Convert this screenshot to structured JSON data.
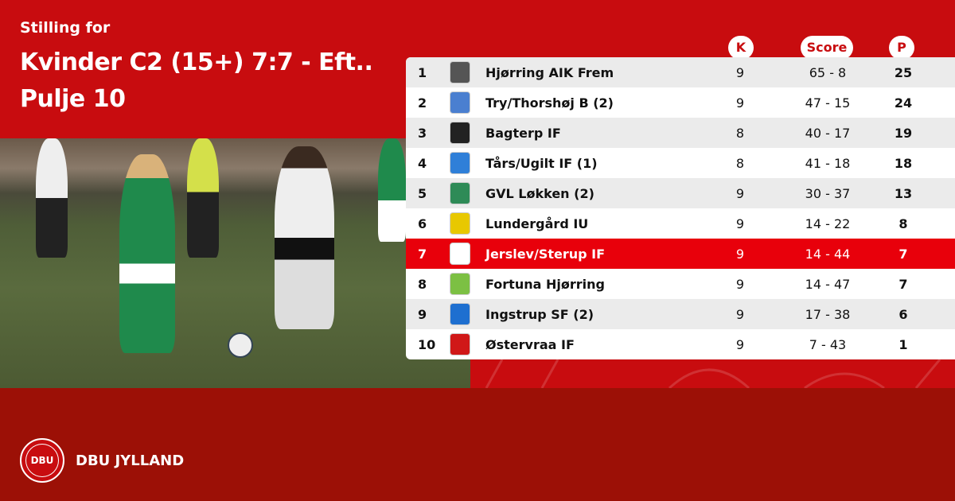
{
  "header": {
    "subtitle": "Stilling for",
    "title_line1": "Kvinder C2 (15+) 7:7 - Eft..",
    "title_line2": "Pulje 10"
  },
  "columns": {
    "k": "K",
    "score": "Score",
    "p": "P"
  },
  "colors": {
    "primary": "#c80c0f",
    "footer": "#9c1006",
    "highlight": "#e8000b"
  },
  "rows": [
    {
      "pos": "1",
      "name": "Hjørring AIK Frem",
      "k": "9",
      "score": "65 - 8",
      "p": "25",
      "logo_color": "#555555"
    },
    {
      "pos": "2",
      "name": "Try/Thorshøj B (2)",
      "k": "9",
      "score": "47 - 15",
      "p": "24",
      "logo_color": "#4a7fd0"
    },
    {
      "pos": "3",
      "name": "Bagterp IF",
      "k": "8",
      "score": "40 - 17",
      "p": "19",
      "logo_color": "#222222"
    },
    {
      "pos": "4",
      "name": "Tårs/Ugilt IF (1)",
      "k": "8",
      "score": "41 - 18",
      "p": "18",
      "logo_color": "#2f7fd8"
    },
    {
      "pos": "5",
      "name": "GVL Løkken (2)",
      "k": "9",
      "score": "30 - 37",
      "p": "13",
      "logo_color": "#2e8b57"
    },
    {
      "pos": "6",
      "name": "Lundergård IU",
      "k": "9",
      "score": "14 - 22",
      "p": "8",
      "logo_color": "#e8c800"
    },
    {
      "pos": "7",
      "name": "Jerslev/Sterup IF",
      "k": "9",
      "score": "14 - 44",
      "p": "7",
      "logo_color": "#ffffff",
      "highlighted": true
    },
    {
      "pos": "8",
      "name": "Fortuna Hjørring",
      "k": "9",
      "score": "14 - 47",
      "p": "7",
      "logo_color": "#7cc043"
    },
    {
      "pos": "9",
      "name": "Ingstrup SF (2)",
      "k": "9",
      "score": "17 - 38",
      "p": "6",
      "logo_color": "#1e6fd0"
    },
    {
      "pos": "10",
      "name": "Østervraa IF",
      "k": "9",
      "score": "7 - 43",
      "p": "1",
      "logo_color": "#d01818"
    }
  ],
  "footer": {
    "brand": "DBU JYLLAND",
    "seal_text": "DBU"
  }
}
